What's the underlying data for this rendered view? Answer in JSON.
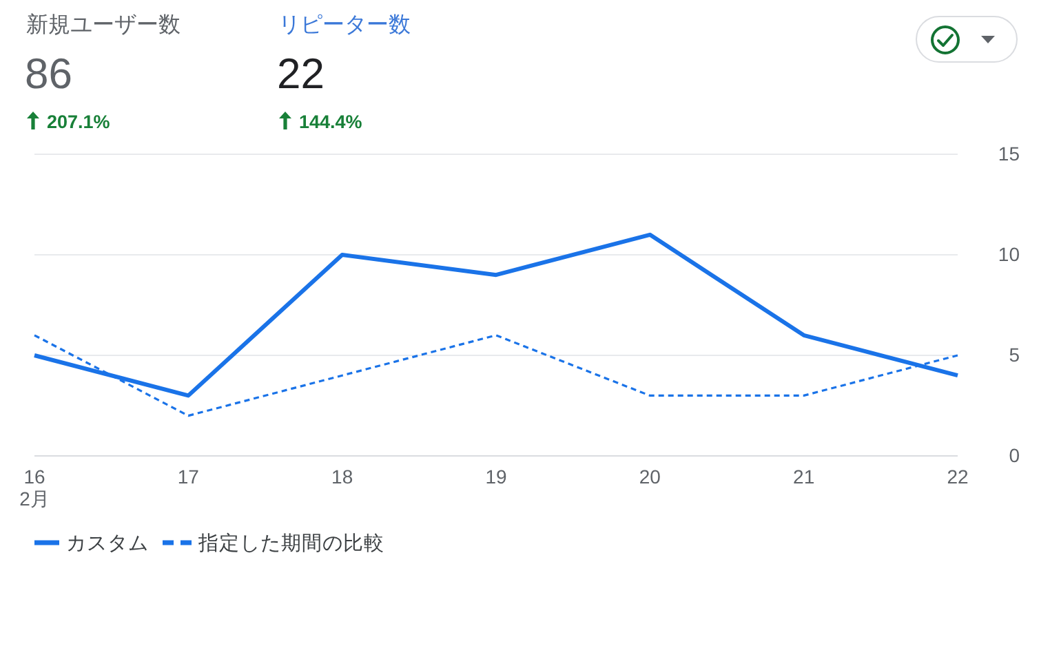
{
  "chart_data": {
    "type": "line",
    "categories": [
      "16\n2月",
      "17",
      "18",
      "19",
      "20",
      "21",
      "22"
    ],
    "series": [
      {
        "name": "カスタム",
        "color": "#1a73e8",
        "values": [
          5,
          3,
          10,
          9,
          11,
          6,
          4
        ],
        "line_style": "solid"
      },
      {
        "name": "指定した期間の比較",
        "color": "#1a73e8",
        "values": [
          6,
          2,
          4,
          6,
          3,
          3,
          5
        ],
        "line_style": "dashed"
      }
    ],
    "ylim": [
      0,
      15
    ],
    "yticks": [
      0,
      5,
      10,
      15
    ],
    "grid": "y",
    "legend": "bottom",
    "annotations": [
      "新規ユーザー数",
      "86",
      "207.1%",
      "リピーター数",
      "22",
      "144.4%"
    ]
  }
}
